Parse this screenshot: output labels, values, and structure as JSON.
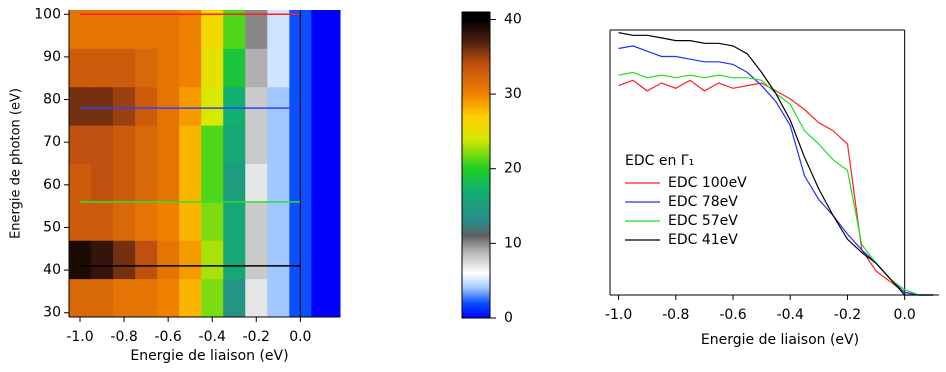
{
  "chart_data": [
    {
      "type": "heatmap",
      "x_label": "Energie de liaison (eV)",
      "y_label": "Energie de photon (eV)",
      "x_bins": [
        -1.05,
        -0.95,
        -0.85,
        -0.75,
        -0.65,
        -0.55,
        -0.45,
        -0.35,
        -0.25,
        -0.15,
        -0.05,
        0.05,
        0.18
      ],
      "y_bins": [
        29,
        38,
        47,
        56,
        65,
        74,
        83,
        92,
        101
      ],
      "z": [
        [
          32,
          32,
          31,
          31,
          30,
          28,
          22,
          14,
          7,
          4,
          2,
          0
        ],
        [
          39,
          38,
          36,
          34,
          31,
          29,
          23,
          16,
          8,
          4,
          2,
          0
        ],
        [
          33,
          33,
          32,
          31,
          30,
          28,
          22,
          16,
          8,
          4,
          2,
          0
        ],
        [
          33,
          34,
          33,
          32,
          31,
          28,
          21,
          15,
          7,
          4,
          2,
          0
        ],
        [
          34,
          34,
          33,
          32,
          31,
          28,
          21,
          16,
          8,
          4,
          2,
          0
        ],
        [
          36,
          36,
          35,
          33,
          31,
          29,
          24,
          17,
          8,
          4,
          2,
          0
        ],
        [
          33,
          33,
          33,
          32,
          31,
          30,
          25,
          19,
          9,
          5,
          2,
          0
        ],
        [
          31,
          31,
          31,
          31,
          31,
          30,
          26,
          21,
          10,
          5,
          2,
          0
        ]
      ],
      "xlim": [
        -1.05,
        0.18
      ],
      "ylim": [
        29,
        101
      ],
      "xticks": [
        {
          "value": -1.0,
          "label": "-1.0"
        },
        {
          "value": -0.8,
          "label": "-0.8"
        },
        {
          "value": -0.6,
          "label": "-0.6"
        },
        {
          "value": -0.4,
          "label": "-0.4"
        },
        {
          "value": -0.2,
          "label": "-0.2"
        },
        {
          "value": 0,
          "label": "0.0"
        }
      ],
      "yticks": [
        30,
        40,
        50,
        60,
        70,
        80,
        90,
        100
      ],
      "hlines": [
        {
          "y": 100,
          "color": "#ff2020"
        },
        {
          "y": 78,
          "color": "#3040ff"
        },
        {
          "y": 56,
          "color": "#30e030"
        },
        {
          "y": 41,
          "color": "#000000"
        }
      ],
      "hline_span": [
        -1.0,
        0
      ],
      "vline": 0
    },
    {
      "type": "colorbar",
      "lim": [
        0,
        41
      ],
      "ticks": [
        0,
        10,
        20,
        30,
        40
      ],
      "stops": [
        {
          "value": 0,
          "color": "#0000ff"
        },
        {
          "value": 2,
          "color": "#0a50ff"
        },
        {
          "value": 4,
          "color": "#a0c8ff"
        },
        {
          "value": 6,
          "color": "#ffffff"
        },
        {
          "value": 9,
          "color": "#b0b0b0"
        },
        {
          "value": 11,
          "color": "#606060"
        },
        {
          "value": 13,
          "color": "#2a8a8a"
        },
        {
          "value": 17,
          "color": "#10b070"
        },
        {
          "value": 20,
          "color": "#20d020"
        },
        {
          "value": 24,
          "color": "#d8e800"
        },
        {
          "value": 27,
          "color": "#ffd000"
        },
        {
          "value": 30,
          "color": "#f08000"
        },
        {
          "value": 34,
          "color": "#c05010"
        },
        {
          "value": 37,
          "color": "#502010"
        },
        {
          "value": 40,
          "color": "#000000"
        }
      ]
    },
    {
      "type": "line",
      "x_label": "Energie de liaison (eV)",
      "legend_title": "EDC en Γ₁",
      "x": [
        -1.0,
        -0.95,
        -0.9,
        -0.85,
        -0.8,
        -0.75,
        -0.7,
        -0.65,
        -0.6,
        -0.55,
        -0.5,
        -0.45,
        -0.4,
        -0.35,
        -0.3,
        -0.25,
        -0.2,
        -0.15,
        -0.1,
        -0.05,
        0,
        0.05,
        0.1
      ],
      "series": [
        {
          "name": "EDC 100eV",
          "color": "#ff2020",
          "values": [
            79,
            81,
            77,
            80,
            78,
            81,
            77,
            80,
            78,
            79,
            80,
            77,
            74,
            70,
            65,
            62,
            57,
            17,
            9,
            5,
            1,
            0,
            0
          ]
        },
        {
          "name": "EDC 78eV",
          "color": "#2030ff",
          "values": [
            93,
            94,
            92,
            90,
            90,
            89,
            88,
            88,
            87,
            84,
            79,
            73,
            64,
            45,
            36,
            30,
            23,
            17,
            12,
            6,
            1,
            0,
            0
          ]
        },
        {
          "name": "EDC 57eV",
          "color": "#20e020",
          "values": [
            83,
            84,
            82,
            83,
            82,
            83,
            82,
            83,
            82,
            82,
            81,
            76,
            72,
            62,
            57,
            51,
            47,
            19,
            12,
            6,
            2,
            0,
            0
          ]
        },
        {
          "name": "EDC 41eV",
          "color": "#000000",
          "values": [
            99,
            98,
            98,
            97,
            96,
            96,
            95,
            95,
            94,
            91,
            84,
            76,
            66,
            52,
            40,
            30,
            21,
            16,
            12,
            6,
            0,
            0,
            0
          ]
        }
      ],
      "xlim": [
        -1.03,
        0.12
      ],
      "ylim": [
        0,
        100
      ],
      "xticks": [
        {
          "value": -1.0,
          "label": "-1.0"
        },
        {
          "value": -0.8,
          "label": "-0.8"
        },
        {
          "value": -0.6,
          "label": "-0.6"
        },
        {
          "value": -0.4,
          "label": "-0.4"
        },
        {
          "value": -0.2,
          "label": "-0.2"
        },
        {
          "value": 0,
          "label": "0.0"
        }
      ],
      "vline": 0
    }
  ]
}
